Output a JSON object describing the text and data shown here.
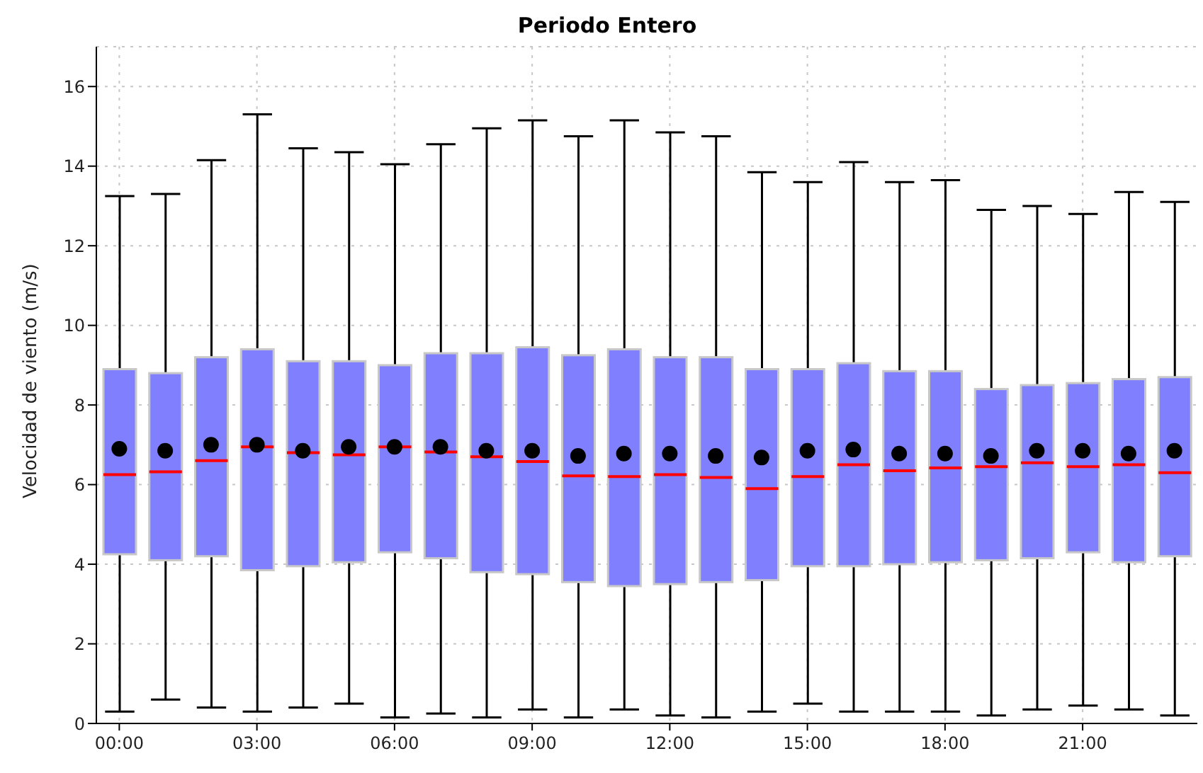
{
  "chart_data": {
    "type": "box",
    "title": "Periodo Entero",
    "ylabel": "Velocidad de viento (m/s)",
    "categories": [
      "00:00",
      null,
      null,
      "03:00",
      null,
      null,
      "06:00",
      null,
      null,
      "09:00",
      null,
      null,
      "12:00",
      null,
      null,
      "15:00",
      null,
      null,
      "18:00",
      null,
      null,
      "21:00",
      null,
      null
    ],
    "ylim": [
      0,
      17
    ],
    "yticks": [
      0,
      2,
      4,
      6,
      8,
      10,
      12,
      14,
      16
    ],
    "grid": true,
    "color": "#8080ff",
    "marker": "circle",
    "boxes": [
      {
        "low": 0.3,
        "q1": 4.25,
        "median": 6.25,
        "q3": 8.9,
        "high": 13.25,
        "mean": 6.9
      },
      {
        "low": 0.6,
        "q1": 4.1,
        "median": 6.32,
        "q3": 8.8,
        "high": 13.3,
        "mean": 6.85
      },
      {
        "low": 0.4,
        "q1": 4.2,
        "median": 6.6,
        "q3": 9.2,
        "high": 14.15,
        "mean": 7.0
      },
      {
        "low": 0.3,
        "q1": 3.85,
        "median": 6.95,
        "q3": 9.4,
        "high": 15.3,
        "mean": 7.0
      },
      {
        "low": 0.4,
        "q1": 3.95,
        "median": 6.8,
        "q3": 9.1,
        "high": 14.45,
        "mean": 6.85
      },
      {
        "low": 0.5,
        "q1": 4.05,
        "median": 6.75,
        "q3": 9.1,
        "high": 14.35,
        "mean": 6.95
      },
      {
        "low": 0.15,
        "q1": 4.3,
        "median": 6.95,
        "q3": 9.0,
        "high": 14.05,
        "mean": 6.95
      },
      {
        "low": 0.25,
        "q1": 4.15,
        "median": 6.82,
        "q3": 9.3,
        "high": 14.55,
        "mean": 6.95
      },
      {
        "low": 0.15,
        "q1": 3.8,
        "median": 6.7,
        "q3": 9.3,
        "high": 14.95,
        "mean": 6.85
      },
      {
        "low": 0.35,
        "q1": 3.75,
        "median": 6.58,
        "q3": 9.45,
        "high": 15.15,
        "mean": 6.85
      },
      {
        "low": 0.15,
        "q1": 3.55,
        "median": 6.22,
        "q3": 9.25,
        "high": 14.75,
        "mean": 6.72
      },
      {
        "low": 0.35,
        "q1": 3.45,
        "median": 6.2,
        "q3": 9.4,
        "high": 15.15,
        "mean": 6.78
      },
      {
        "low": 0.2,
        "q1": 3.5,
        "median": 6.25,
        "q3": 9.2,
        "high": 14.85,
        "mean": 6.78
      },
      {
        "low": 0.15,
        "q1": 3.55,
        "median": 6.18,
        "q3": 9.2,
        "high": 14.75,
        "mean": 6.72
      },
      {
        "low": 0.3,
        "q1": 3.6,
        "median": 5.9,
        "q3": 8.9,
        "high": 13.85,
        "mean": 6.68
      },
      {
        "low": 0.5,
        "q1": 3.95,
        "median": 6.2,
        "q3": 8.9,
        "high": 13.6,
        "mean": 6.85
      },
      {
        "low": 0.3,
        "q1": 3.95,
        "median": 6.5,
        "q3": 9.05,
        "high": 14.1,
        "mean": 6.88
      },
      {
        "low": 0.3,
        "q1": 4.0,
        "median": 6.35,
        "q3": 8.85,
        "high": 13.6,
        "mean": 6.78
      },
      {
        "low": 0.3,
        "q1": 4.05,
        "median": 6.42,
        "q3": 8.85,
        "high": 13.65,
        "mean": 6.78
      },
      {
        "low": 0.2,
        "q1": 4.1,
        "median": 6.45,
        "q3": 8.4,
        "high": 12.9,
        "mean": 6.72
      },
      {
        "low": 0.35,
        "q1": 4.15,
        "median": 6.55,
        "q3": 8.5,
        "high": 13.0,
        "mean": 6.85
      },
      {
        "low": 0.45,
        "q1": 4.3,
        "median": 6.45,
        "q3": 8.55,
        "high": 12.8,
        "mean": 6.85
      },
      {
        "low": 0.35,
        "q1": 4.05,
        "median": 6.5,
        "q3": 8.65,
        "high": 13.35,
        "mean": 6.78
      },
      {
        "low": 0.2,
        "q1": 4.2,
        "median": 6.3,
        "q3": 8.7,
        "high": 13.1,
        "mean": 6.85
      }
    ]
  }
}
